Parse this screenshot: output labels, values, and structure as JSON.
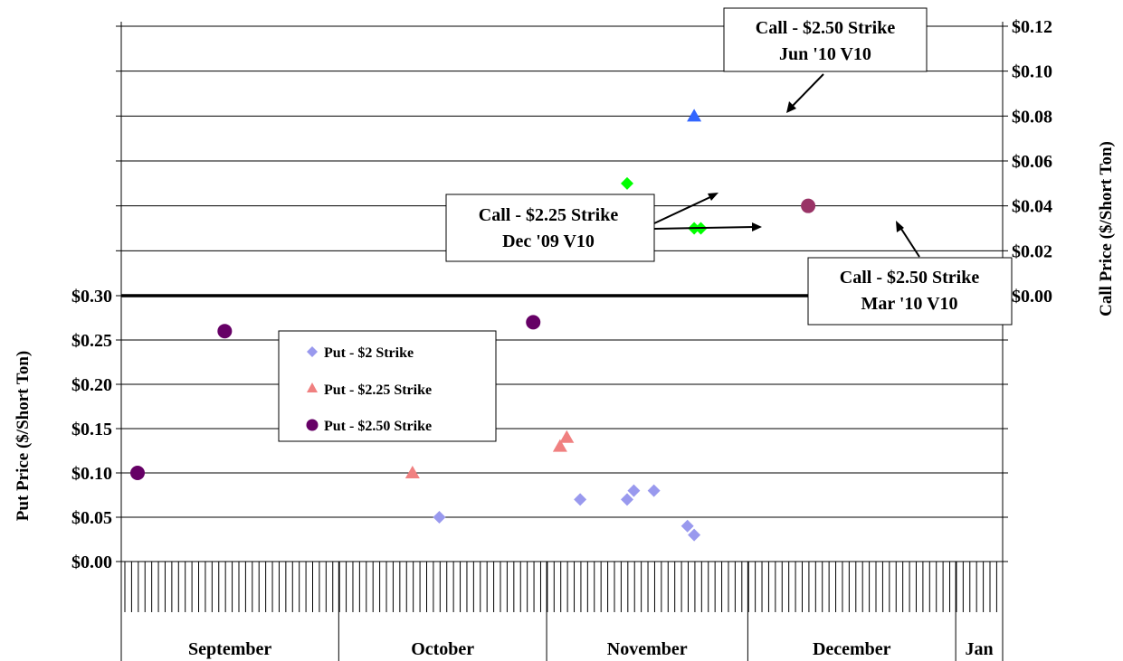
{
  "chart_data": {
    "type": "scatter",
    "left_axis": {
      "label": "Put Price ($/Short Ton)",
      "range": [
        0,
        0.3
      ],
      "ticks": [
        "$0.00",
        "$0.05",
        "$0.10",
        "$0.15",
        "$0.20",
        "$0.25",
        "$0.30"
      ]
    },
    "right_axis": {
      "label": "Call Price ($/Short Ton)",
      "range": [
        0,
        0.12
      ],
      "ticks": [
        "$0.00",
        "$0.02",
        "$0.04",
        "$0.06",
        "$0.08",
        "$0.10",
        "$0.12"
      ]
    },
    "x_axis": {
      "months": [
        "September",
        "October",
        "November",
        "December",
        "Jan"
      ]
    },
    "legend": {
      "placement": "center-left",
      "entries": [
        "Put - $2 Strike",
        "Put - $2.25 Strike",
        "Put - $2.50 Strike"
      ]
    },
    "series": [
      {
        "name": "Put - $2 Strike",
        "axis": "left",
        "marker": "diamond",
        "color": "#9999ee",
        "points": [
          [
            "2009-10-16",
            0.05
          ],
          [
            "2009-11-06",
            0.07
          ],
          [
            "2009-11-13",
            0.07
          ],
          [
            "2009-11-14",
            0.08
          ],
          [
            "2009-11-17",
            0.08
          ],
          [
            "2009-11-22",
            0.04
          ],
          [
            "2009-11-23",
            0.03
          ]
        ]
      },
      {
        "name": "Put - $2.25 Strike",
        "axis": "left",
        "marker": "triangle",
        "color": "#f08080",
        "points": [
          [
            "2009-10-12",
            0.1
          ],
          [
            "2009-11-03",
            0.13
          ],
          [
            "2009-11-04",
            0.14
          ]
        ]
      },
      {
        "name": "Put - $2.50 Strike",
        "axis": "left",
        "marker": "circle",
        "color": "#660066",
        "points": [
          [
            "2009-09-01",
            0.1
          ],
          [
            "2009-09-14",
            0.26
          ],
          [
            "2009-10-30",
            0.27
          ]
        ]
      },
      {
        "name": "Call - $2.25 Strike Dec '09 V10",
        "axis": "right",
        "marker": "diamond",
        "color": "#00ff00",
        "points": [
          [
            "2009-11-13",
            0.05
          ],
          [
            "2009-11-23",
            0.03
          ],
          [
            "2009-11-24",
            0.03
          ]
        ]
      },
      {
        "name": "Call - $2.50 Strike Jun '10 V10",
        "axis": "right",
        "marker": "triangle",
        "color": "#3366ff",
        "points": [
          [
            "2009-11-23",
            0.08
          ]
        ]
      },
      {
        "name": "Call - $2.50 Strike Mar '10 V10",
        "axis": "right",
        "marker": "circle",
        "color": "#993366",
        "points": [
          [
            "2009-12-10",
            0.04
          ]
        ]
      }
    ],
    "annotations": [
      {
        "line1": "Call - $2.50 Strike",
        "line2": "Jun '10 V10"
      },
      {
        "line1": "Call - $2.25 Strike",
        "line2": "Dec '09 V10"
      },
      {
        "line1": "Call - $2.50 Strike",
        "line2": "Mar '10 V10"
      }
    ]
  }
}
